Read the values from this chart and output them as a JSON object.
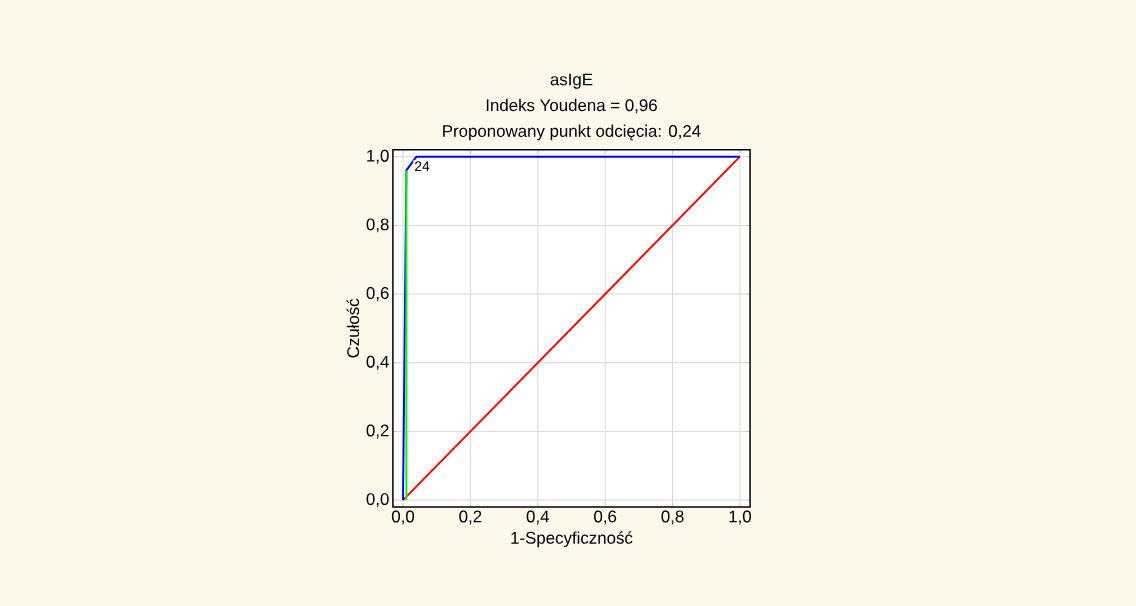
{
  "chart_data": {
    "type": "line",
    "title": "asIgE",
    "subtitle": "Indeks Youdena  = 0,96",
    "xlabel": "1-Specyficzność",
    "ylabel": "Czułość",
    "series": [
      {
        "color": "#ff0000",
        "x": [
          0,
          1
        ],
        "values": [
          0,
          1
        ]
      },
      {
        "color": "#0000ff",
        "x": [
          0,
          0.01,
          0.04,
          1
        ],
        "values": [
          0,
          0.96,
          1,
          1
        ]
      },
      {
        "color": "#00ff00",
        "x": [
          0.01,
          0.01
        ],
        "values": [
          0,
          0.96
        ]
      }
    ],
    "annotations": [
      "Proponowany punkt odcięcia: 0,24",
      {
        "text": "24",
        "x": 0.03,
        "y": 0.99
      }
    ],
    "xlim": [
      -0.03,
      1.03
    ],
    "ylim": [
      -0.02,
      1.02
    ],
    "xticks": [
      {
        "value": 0,
        "label": "0,0"
      },
      {
        "value": 0.2,
        "label": "0,2"
      },
      {
        "value": 0.4,
        "label": "0,4"
      },
      {
        "value": 0.6,
        "label": "0,6"
      },
      {
        "value": 0.8,
        "label": "0,8"
      },
      {
        "value": 1,
        "label": "1,0"
      }
    ],
    "yticks": [
      {
        "value": 0,
        "label": "0,0"
      },
      {
        "value": 0.2,
        "label": "0,2"
      },
      {
        "value": 0.4,
        "label": "0,4"
      },
      {
        "value": 0.6,
        "label": "0,6"
      },
      {
        "value": 0.8,
        "label": "0,8"
      },
      {
        "value": 1,
        "label": "1,0"
      }
    ],
    "grid": true
  }
}
